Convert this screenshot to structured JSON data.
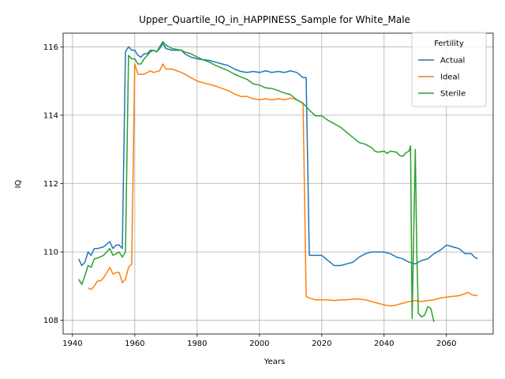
{
  "chart_data": {
    "type": "line",
    "title": "Upper_Quartile_IQ_in_HAPPINESS_Sample for White_Male",
    "xlabel": "Years",
    "ylabel": "IQ",
    "xlim": [
      1937,
      2075
    ],
    "ylim": [
      107.6,
      116.4
    ],
    "xticks": [
      1940,
      1960,
      1980,
      2000,
      2020,
      2040,
      2060
    ],
    "yticks": [
      108,
      110,
      112,
      114,
      116
    ],
    "grid": true,
    "legend": {
      "title": "Fertility",
      "placement": "top-right"
    },
    "series": [
      {
        "name": "Actual",
        "color": "#1f77b4",
        "points": [
          [
            1942,
            109.8
          ],
          [
            1943,
            109.6
          ],
          [
            1944,
            109.7
          ],
          [
            1945,
            110.0
          ],
          [
            1946,
            109.9
          ],
          [
            1947,
            110.1
          ],
          [
            1948,
            110.1
          ],
          [
            1950,
            110.15
          ],
          [
            1952,
            110.3
          ],
          [
            1953,
            110.1
          ],
          [
            1954,
            110.2
          ],
          [
            1955,
            110.2
          ],
          [
            1956,
            110.1
          ],
          [
            1957,
            115.85
          ],
          [
            1958,
            116.0
          ],
          [
            1959,
            115.9
          ],
          [
            1960,
            115.9
          ],
          [
            1961,
            115.75
          ],
          [
            1962,
            115.7
          ],
          [
            1963,
            115.8
          ],
          [
            1964,
            115.8
          ],
          [
            1965,
            115.9
          ],
          [
            1966,
            115.9
          ],
          [
            1967,
            115.85
          ],
          [
            1968,
            115.95
          ],
          [
            1969,
            116.1
          ],
          [
            1970,
            115.95
          ],
          [
            1972,
            115.9
          ],
          [
            1975,
            115.9
          ],
          [
            1976,
            115.8
          ],
          [
            1978,
            115.7
          ],
          [
            1980,
            115.65
          ],
          [
            1984,
            115.6
          ],
          [
            1986,
            115.55
          ],
          [
            1988,
            115.5
          ],
          [
            1990,
            115.45
          ],
          [
            1992,
            115.35
          ],
          [
            1994,
            115.28
          ],
          [
            1996,
            115.25
          ],
          [
            1998,
            115.28
          ],
          [
            2000,
            115.25
          ],
          [
            2002,
            115.3
          ],
          [
            2004,
            115.25
          ],
          [
            2006,
            115.28
          ],
          [
            2008,
            115.25
          ],
          [
            2010,
            115.3
          ],
          [
            2012,
            115.25
          ],
          [
            2014,
            115.1
          ],
          [
            2015,
            115.1
          ],
          [
            2016,
            109.9
          ],
          [
            2018,
            109.9
          ],
          [
            2020,
            109.9
          ],
          [
            2022,
            109.75
          ],
          [
            2024,
            109.6
          ],
          [
            2026,
            109.6
          ],
          [
            2028,
            109.65
          ],
          [
            2030,
            109.7
          ],
          [
            2032,
            109.85
          ],
          [
            2034,
            109.95
          ],
          [
            2036,
            110.0
          ],
          [
            2038,
            110.0
          ],
          [
            2040,
            110.0
          ],
          [
            2042,
            109.95
          ],
          [
            2044,
            109.85
          ],
          [
            2046,
            109.8
          ],
          [
            2048,
            109.7
          ],
          [
            2050,
            109.65
          ],
          [
            2052,
            109.75
          ],
          [
            2054,
            109.8
          ],
          [
            2056,
            109.95
          ],
          [
            2058,
            110.05
          ],
          [
            2060,
            110.2
          ],
          [
            2062,
            110.15
          ],
          [
            2064,
            110.1
          ],
          [
            2066,
            109.95
          ],
          [
            2068,
            109.95
          ],
          [
            2069,
            109.85
          ],
          [
            2070,
            109.8
          ]
        ]
      },
      {
        "name": "Ideal",
        "color": "#ff7f0e",
        "points": [
          [
            1945,
            108.95
          ],
          [
            1946,
            108.9
          ],
          [
            1947,
            109.0
          ],
          [
            1948,
            109.15
          ],
          [
            1949,
            109.15
          ],
          [
            1950,
            109.25
          ],
          [
            1951,
            109.4
          ],
          [
            1952,
            109.55
          ],
          [
            1953,
            109.35
          ],
          [
            1954,
            109.4
          ],
          [
            1955,
            109.4
          ],
          [
            1956,
            109.1
          ],
          [
            1957,
            109.2
          ],
          [
            1958,
            109.55
          ],
          [
            1959,
            109.65
          ],
          [
            1960,
            115.5
          ],
          [
            1961,
            115.2
          ],
          [
            1962,
            115.2
          ],
          [
            1963,
            115.2
          ],
          [
            1964,
            115.25
          ],
          [
            1965,
            115.3
          ],
          [
            1966,
            115.25
          ],
          [
            1968,
            115.3
          ],
          [
            1969,
            115.5
          ],
          [
            1970,
            115.35
          ],
          [
            1972,
            115.35
          ],
          [
            1975,
            115.25
          ],
          [
            1978,
            115.1
          ],
          [
            1980,
            115.0
          ],
          [
            1982,
            114.95
          ],
          [
            1984,
            114.9
          ],
          [
            1986,
            114.85
          ],
          [
            1988,
            114.78
          ],
          [
            1990,
            114.72
          ],
          [
            1992,
            114.62
          ],
          [
            1994,
            114.55
          ],
          [
            1996,
            114.55
          ],
          [
            1998,
            114.48
          ],
          [
            2000,
            114.45
          ],
          [
            2002,
            114.48
          ],
          [
            2004,
            114.45
          ],
          [
            2006,
            114.48
          ],
          [
            2008,
            114.45
          ],
          [
            2010,
            114.5
          ],
          [
            2012,
            114.45
          ],
          [
            2014,
            114.35
          ],
          [
            2015,
            108.7
          ],
          [
            2016,
            108.65
          ],
          [
            2018,
            108.6
          ],
          [
            2020,
            108.6
          ],
          [
            2022,
            108.6
          ],
          [
            2024,
            108.58
          ],
          [
            2026,
            108.6
          ],
          [
            2028,
            108.6
          ],
          [
            2030,
            108.62
          ],
          [
            2032,
            108.62
          ],
          [
            2034,
            108.6
          ],
          [
            2036,
            108.55
          ],
          [
            2038,
            108.5
          ],
          [
            2040,
            108.45
          ],
          [
            2042,
            108.42
          ],
          [
            2044,
            108.45
          ],
          [
            2046,
            108.5
          ],
          [
            2048,
            108.55
          ],
          [
            2050,
            108.58
          ],
          [
            2052,
            108.55
          ],
          [
            2054,
            108.58
          ],
          [
            2056,
            108.6
          ],
          [
            2058,
            108.65
          ],
          [
            2060,
            108.68
          ],
          [
            2062,
            108.7
          ],
          [
            2064,
            108.72
          ],
          [
            2066,
            108.78
          ],
          [
            2067,
            108.82
          ],
          [
            2068,
            108.75
          ],
          [
            2070,
            108.72
          ]
        ]
      },
      {
        "name": "Sterile",
        "color": "#2ca02c",
        "points": [
          [
            1942,
            109.2
          ],
          [
            1943,
            109.05
          ],
          [
            1944,
            109.3
          ],
          [
            1945,
            109.6
          ],
          [
            1946,
            109.55
          ],
          [
            1947,
            109.8
          ],
          [
            1948,
            109.82
          ],
          [
            1950,
            109.9
          ],
          [
            1952,
            110.1
          ],
          [
            1953,
            109.9
          ],
          [
            1954,
            109.95
          ],
          [
            1955,
            110.0
          ],
          [
            1956,
            109.85
          ],
          [
            1957,
            110.0
          ],
          [
            1958,
            115.75
          ],
          [
            1959,
            115.65
          ],
          [
            1960,
            115.65
          ],
          [
            1961,
            115.5
          ],
          [
            1962,
            115.5
          ],
          [
            1963,
            115.65
          ],
          [
            1964,
            115.75
          ],
          [
            1965,
            115.85
          ],
          [
            1966,
            115.9
          ],
          [
            1967,
            115.85
          ],
          [
            1968,
            116.0
          ],
          [
            1969,
            116.15
          ],
          [
            1970,
            116.05
          ],
          [
            1972,
            115.95
          ],
          [
            1975,
            115.9
          ],
          [
            1976,
            115.85
          ],
          [
            1978,
            115.8
          ],
          [
            1980,
            115.7
          ],
          [
            1982,
            115.62
          ],
          [
            1984,
            115.55
          ],
          [
            1986,
            115.45
          ],
          [
            1988,
            115.38
          ],
          [
            1990,
            115.3
          ],
          [
            1992,
            115.2
          ],
          [
            1994,
            115.12
          ],
          [
            1996,
            115.05
          ],
          [
            1998,
            114.92
          ],
          [
            2000,
            114.88
          ],
          [
            2002,
            114.8
          ],
          [
            2004,
            114.78
          ],
          [
            2006,
            114.72
          ],
          [
            2008,
            114.65
          ],
          [
            2010,
            114.6
          ],
          [
            2012,
            114.45
          ],
          [
            2014,
            114.35
          ],
          [
            2016,
            114.15
          ],
          [
            2018,
            113.98
          ],
          [
            2020,
            113.98
          ],
          [
            2022,
            113.85
          ],
          [
            2024,
            113.75
          ],
          [
            2026,
            113.65
          ],
          [
            2028,
            113.5
          ],
          [
            2030,
            113.35
          ],
          [
            2032,
            113.2
          ],
          [
            2034,
            113.15
          ],
          [
            2036,
            113.05
          ],
          [
            2037,
            112.95
          ],
          [
            2038,
            112.92
          ],
          [
            2040,
            112.95
          ],
          [
            2041,
            112.88
          ],
          [
            2042,
            112.95
          ],
          [
            2044,
            112.92
          ],
          [
            2045,
            112.82
          ],
          [
            2046,
            112.8
          ],
          [
            2047,
            112.9
          ],
          [
            2048,
            112.95
          ],
          [
            2048.5,
            113.1
          ],
          [
            2049,
            108.05
          ],
          [
            2050,
            113.0
          ],
          [
            2050.5,
            110.0
          ],
          [
            2051,
            108.2
          ],
          [
            2052,
            108.1
          ],
          [
            2053,
            108.15
          ],
          [
            2054,
            108.4
          ],
          [
            2055,
            108.35
          ],
          [
            2056,
            107.95
          ]
        ]
      }
    ]
  }
}
